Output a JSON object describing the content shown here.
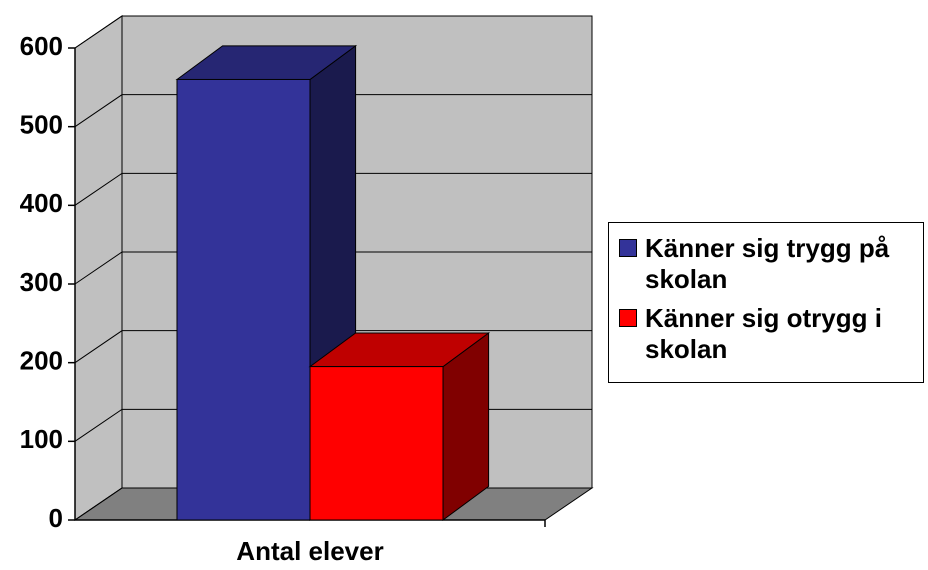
{
  "chart_data": {
    "type": "bar3d",
    "categories": [
      "Antal elever"
    ],
    "series": [
      {
        "name": "Känner sig trygg på skolan",
        "color": "#333399",
        "values": [
          560
        ]
      },
      {
        "name": "Känner sig otrygg i skolan",
        "color": "#ff0000",
        "values": [
          195
        ]
      }
    ],
    "ylim": [
      0,
      600
    ],
    "yticks": [
      0,
      100,
      200,
      300,
      400,
      500,
      600
    ],
    "grid": true,
    "legend": "right"
  }
}
